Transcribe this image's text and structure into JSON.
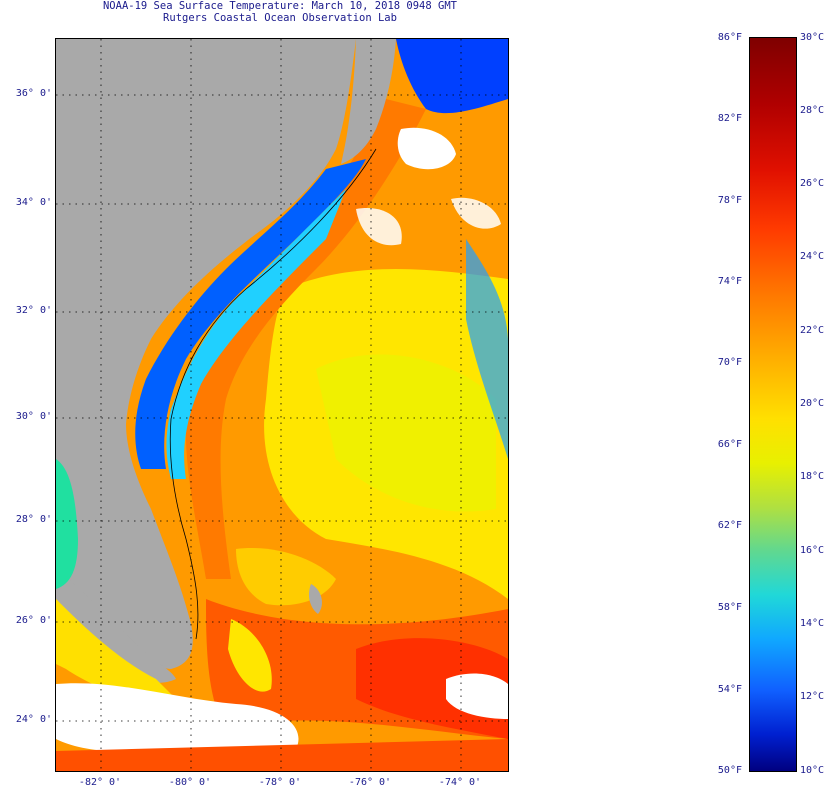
{
  "header": {
    "title_line1": "NOAA-19 Sea Surface Temperature:  March 10, 2018 0948 GMT",
    "title_line2": "Rutgers Coastal Ocean Observation Lab"
  },
  "map": {
    "region": "Southeast US coast and Bahamas",
    "lat_labels": [
      "36° 0'",
      "34° 0'",
      "32° 0'",
      "30° 0'",
      "28° 0'",
      "26° 0'",
      "24° 0'"
    ],
    "lon_labels": [
      "-82° 0'",
      "-80° 0'",
      "-78° 0'",
      "-76° 0'",
      "-74° 0'"
    ],
    "colors": {
      "land": "#a9a9a9",
      "warm": "#ff8a00",
      "gulfstream": "#ff5000",
      "mid": "#ffd000",
      "cool": "#20c8ff",
      "cold": "#0030ff",
      "cloud": "#ffffff"
    }
  },
  "colorbar": {
    "fahrenheit_labels": [
      "86°F",
      "82°F",
      "78°F",
      "74°F",
      "70°F",
      "66°F",
      "62°F",
      "58°F",
      "54°F",
      "50°F"
    ],
    "celsius_labels": [
      "30°C",
      "28°C",
      "26°C",
      "24°C",
      "22°C",
      "20°C",
      "18°C",
      "16°C",
      "14°C",
      "12°C",
      "10°C"
    ]
  }
}
